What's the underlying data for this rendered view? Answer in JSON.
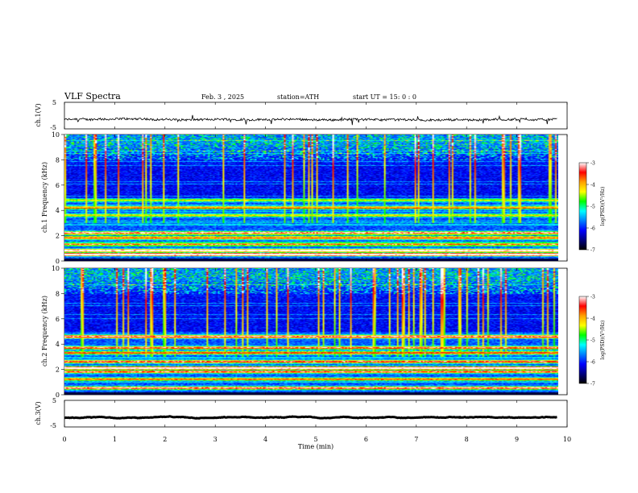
{
  "header": {
    "title": "VLF Spectra",
    "date": "Feb. 3 , 2025",
    "station": "station=ATH",
    "start": "start UT = 15: 0 : 0"
  },
  "colorbar": {
    "label": "log(PSD)(V²/Hz)",
    "ticks": [
      "-3",
      "-4",
      "-5",
      "-6",
      "-7"
    ],
    "colors": [
      "#ffffff",
      "#ff0000",
      "#ffa000",
      "#ffff00",
      "#00ff00",
      "#00ffff",
      "#0080ff",
      "#0000ff",
      "#000080",
      "#000000"
    ]
  },
  "chart_data": [
    {
      "type": "line",
      "name": "ch1-waveform",
      "ylabel": "ch.1(V)",
      "ylim": [
        -5,
        5
      ],
      "ytick_labels": [
        "5",
        "-5"
      ],
      "xlim": [
        0,
        10
      ],
      "baseline": -1.5,
      "noise_amplitude": 0.8,
      "x_end": 9.8
    },
    {
      "type": "heatmap",
      "name": "ch1-spectrogram",
      "ylabel": "ch.1 Frequency (kHz)",
      "ylim": [
        0,
        10
      ],
      "yticks": [
        "0",
        "2",
        "4",
        "6",
        "8",
        "10"
      ],
      "xlim": [
        0,
        10
      ],
      "x_end": 9.8,
      "bands": [
        {
          "f": 0.5,
          "level": 0.95
        },
        {
          "f": 0.8,
          "level": 0.85
        },
        {
          "f": 1.3,
          "level": 0.55
        },
        {
          "f": 1.8,
          "level": 0.6
        },
        {
          "f": 2.2,
          "level": 0.7
        },
        {
          "f": 3.6,
          "level": 0.45
        },
        {
          "f": 4.2,
          "level": 0.5
        },
        {
          "f": 4.8,
          "level": 0.4
        }
      ]
    },
    {
      "type": "heatmap",
      "name": "ch2-spectrogram",
      "ylabel": "ch.2 Frequency (kHz)",
      "ylim": [
        0,
        10
      ],
      "yticks": [
        "0",
        "2",
        "4",
        "6",
        "8",
        "10"
      ],
      "xlim": [
        0,
        10
      ],
      "x_end": 9.8,
      "bands": [
        {
          "f": 0.5,
          "level": 0.75
        },
        {
          "f": 1.2,
          "level": 0.6
        },
        {
          "f": 1.8,
          "level": 0.7
        },
        {
          "f": 2.1,
          "level": 0.95
        },
        {
          "f": 2.6,
          "level": 0.7
        },
        {
          "f": 3.3,
          "level": 0.65
        },
        {
          "f": 3.7,
          "level": 0.7
        },
        {
          "f": 4.6,
          "level": 0.75
        }
      ]
    },
    {
      "type": "line",
      "name": "ch3-waveform",
      "ylabel": "ch.3(V)",
      "ylim": [
        -5,
        5
      ],
      "ytick_labels": [
        "5",
        "-5"
      ],
      "xlim": [
        0,
        10
      ],
      "baseline": -1.5,
      "noise_amplitude": 0.1,
      "x_end": 9.8
    }
  ],
  "xaxis": {
    "label": "Time (min)",
    "ticks": [
      "0",
      "1",
      "2",
      "3",
      "4",
      "5",
      "6",
      "7",
      "8",
      "9",
      "10"
    ]
  }
}
